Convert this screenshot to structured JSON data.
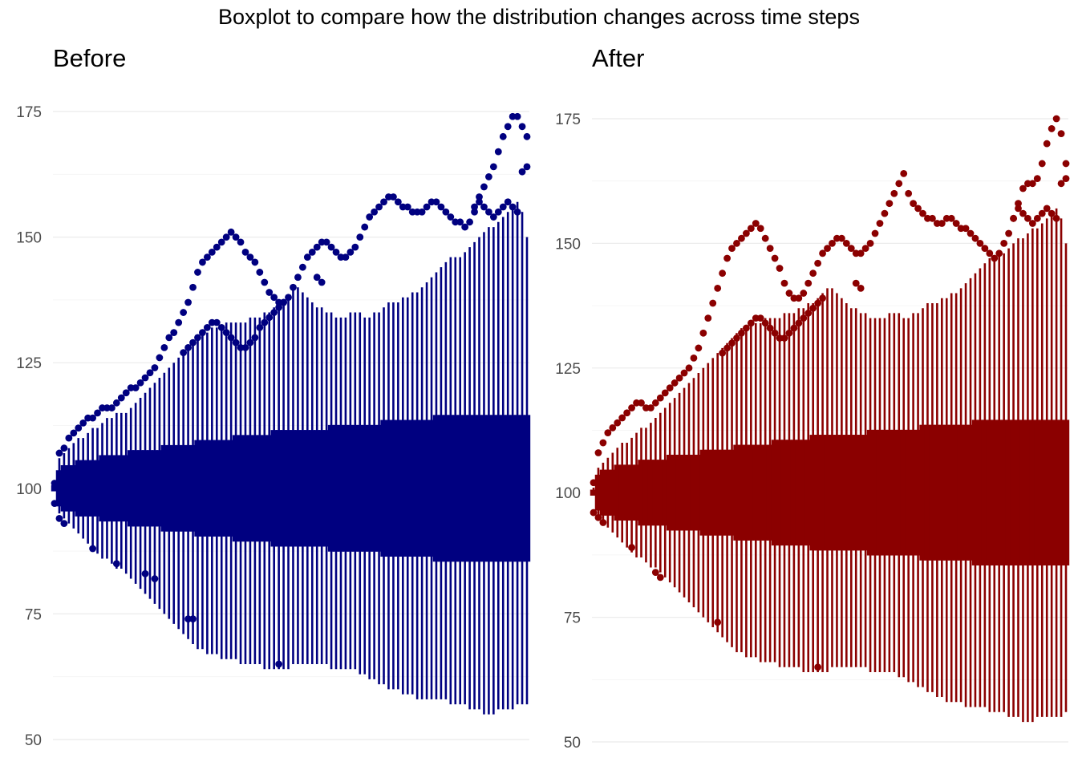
{
  "chart_data": {
    "type": "boxplot",
    "title": "Boxplot to compare how the distribution changes across time steps",
    "n_time_steps": 100,
    "panels": [
      {
        "name": "Before",
        "color": "#000080",
        "ylim": [
          50,
          175
        ],
        "yticks": [
          50,
          75,
          100,
          125,
          150,
          175
        ],
        "grid": true,
        "upper_whisker": [
          100,
          106,
          107,
          108,
          109,
          110,
          110,
          111,
          112,
          112,
          113,
          114,
          114,
          115,
          115,
          115,
          116,
          117,
          118,
          119,
          120,
          121,
          122,
          123,
          124,
          125,
          126,
          127,
          128,
          129,
          130,
          131,
          131,
          132,
          132,
          132,
          133,
          133,
          133,
          133,
          133,
          134,
          134,
          134,
          135,
          135,
          136,
          136,
          137,
          138,
          140,
          140,
          139,
          138,
          137,
          136,
          136,
          135,
          135,
          134,
          134,
          134,
          135,
          135,
          135,
          134,
          134,
          135,
          135,
          136,
          137,
          137,
          137,
          138,
          138,
          139,
          139,
          140,
          141,
          142,
          143,
          144,
          145,
          146,
          146,
          146,
          147,
          148,
          149,
          150,
          151,
          152,
          152,
          153,
          154,
          155,
          156,
          157,
          155,
          150
        ],
        "lower_whisker": [
          100,
          95,
          94,
          93,
          92,
          91,
          90,
          89,
          88,
          87,
          86,
          86,
          85,
          84,
          84,
          83,
          82,
          81,
          80,
          79,
          78,
          77,
          76,
          75,
          74,
          73,
          72,
          71,
          70,
          69,
          68,
          68,
          67,
          67,
          67,
          66,
          66,
          66,
          66,
          65,
          65,
          65,
          65,
          65,
          64,
          64,
          64,
          64,
          64,
          64,
          65,
          65,
          65,
          65,
          65,
          65,
          65,
          65,
          64,
          64,
          64,
          64,
          64,
          64,
          63,
          63,
          62,
          62,
          61,
          61,
          60,
          60,
          60,
          59,
          59,
          59,
          58,
          58,
          58,
          58,
          58,
          58,
          58,
          57,
          57,
          57,
          57,
          56,
          56,
          56,
          55,
          55,
          55,
          56,
          56,
          56,
          56,
          57,
          57,
          57
        ],
        "box_half_width": [
          0,
          3,
          4,
          4,
          4,
          5,
          5,
          5,
          5,
          5,
          6,
          6,
          6,
          6,
          6,
          6,
          7,
          7,
          7,
          7,
          7,
          7,
          7,
          8,
          8,
          8,
          8,
          8,
          8,
          8,
          9,
          9,
          9,
          9,
          9,
          9,
          9,
          9,
          10,
          10,
          10,
          10,
          10,
          10,
          10,
          10,
          11,
          11,
          11,
          11,
          11,
          11,
          11,
          11,
          11,
          11,
          11,
          11,
          12,
          12,
          12,
          12,
          12,
          12,
          12,
          12,
          12,
          12,
          12,
          13,
          13,
          13,
          13,
          13,
          13,
          13,
          13,
          13,
          13,
          13,
          14,
          14,
          14,
          14,
          14,
          14,
          14,
          14,
          14,
          14,
          14,
          14,
          14,
          14,
          14,
          14,
          14,
          14,
          14,
          14
        ],
        "upper_outlier_1": [
          101,
          107,
          108,
          110,
          111,
          112,
          113,
          114,
          114,
          115,
          116,
          116,
          116,
          117,
          118,
          119,
          120,
          120,
          121,
          122,
          123,
          124,
          126,
          128,
          130,
          131,
          133,
          135,
          137,
          140,
          143,
          145,
          146,
          147,
          148,
          149,
          150,
          151,
          150,
          149,
          147,
          146,
          145,
          143,
          141,
          139,
          138,
          137,
          137,
          138,
          140,
          142,
          144,
          146,
          147,
          148,
          149,
          149,
          148,
          147,
          146,
          146,
          147,
          148,
          150,
          152,
          154,
          155,
          156,
          157,
          158,
          158,
          157,
          156,
          156,
          155,
          155,
          155,
          156,
          157,
          157,
          156,
          155,
          154,
          153,
          153,
          152,
          153,
          156,
          158,
          160,
          162,
          164,
          167,
          170,
          172,
          174,
          174,
          172,
          170
        ],
        "upper_outlier_2": [
          null,
          null,
          null,
          null,
          null,
          null,
          null,
          null,
          null,
          null,
          null,
          null,
          null,
          null,
          null,
          null,
          null,
          null,
          null,
          null,
          null,
          null,
          null,
          null,
          null,
          null,
          null,
          127,
          128,
          129,
          130,
          131,
          132,
          133,
          133,
          132,
          131,
          130,
          129,
          128,
          128,
          129,
          130,
          132,
          133,
          134,
          135,
          136,
          137,
          null,
          null,
          null,
          null,
          null,
          null,
          142,
          141,
          null,
          null,
          null,
          null,
          null,
          null,
          null,
          null,
          null,
          null,
          null,
          null,
          null,
          null,
          null,
          null,
          null,
          null,
          null,
          null,
          null,
          null,
          null,
          null,
          null,
          null,
          null,
          null,
          null,
          null,
          null,
          155,
          157,
          156,
          155,
          154,
          155,
          156,
          157,
          156,
          155,
          163,
          164
        ],
        "lower_outlier": [
          97,
          94,
          93,
          null,
          null,
          null,
          null,
          null,
          88,
          null,
          null,
          null,
          null,
          85,
          null,
          null,
          null,
          null,
          null,
          83,
          null,
          82,
          null,
          null,
          null,
          null,
          null,
          null,
          74,
          74,
          null,
          null,
          null,
          null,
          null,
          null,
          null,
          null,
          null,
          null,
          null,
          null,
          null,
          null,
          null,
          null,
          null,
          65,
          null,
          null,
          null,
          null,
          null,
          null,
          null,
          null,
          null,
          null,
          null,
          null,
          null,
          null,
          null,
          null,
          null,
          null,
          null,
          null,
          null,
          null,
          null,
          null,
          null,
          null,
          null,
          null,
          null,
          null,
          null,
          null,
          null,
          null,
          null,
          null,
          null,
          null,
          null,
          null,
          null,
          null,
          null,
          null,
          null,
          null,
          null,
          null,
          null,
          null,
          null,
          null
        ]
      },
      {
        "name": "After",
        "color": "#8b0000",
        "ylim": [
          50,
          175
        ],
        "yticks": [
          50,
          75,
          100,
          125,
          150,
          175
        ],
        "grid": true,
        "upper_whisker": [
          101,
          105,
          106,
          107,
          108,
          109,
          110,
          110,
          111,
          112,
          113,
          113,
          114,
          115,
          116,
          117,
          118,
          119,
          120,
          121,
          122,
          123,
          124,
          125,
          126,
          127,
          128,
          129,
          130,
          131,
          132,
          133,
          133,
          134,
          134,
          134,
          135,
          135,
          135,
          135,
          136,
          136,
          136,
          137,
          137,
          138,
          138,
          139,
          140,
          141,
          141,
          140,
          139,
          138,
          137,
          137,
          136,
          136,
          135,
          135,
          135,
          135,
          136,
          136,
          136,
          135,
          135,
          136,
          136,
          137,
          138,
          138,
          138,
          139,
          139,
          140,
          140,
          141,
          142,
          143,
          144,
          145,
          146,
          147,
          147,
          148,
          148,
          149,
          150,
          151,
          151,
          152,
          153,
          153,
          154,
          155,
          156,
          157,
          155,
          150
        ],
        "lower_whisker": [
          100,
          95,
          94,
          93,
          92,
          91,
          90,
          89,
          88,
          87,
          87,
          86,
          85,
          85,
          84,
          83,
          82,
          81,
          80,
          79,
          78,
          77,
          76,
          75,
          74,
          73,
          72,
          71,
          70,
          69,
          68,
          68,
          67,
          67,
          67,
          66,
          66,
          66,
          66,
          65,
          65,
          65,
          65,
          65,
          64,
          64,
          64,
          64,
          64,
          64,
          65,
          65,
          65,
          65,
          65,
          65,
          65,
          65,
          64,
          64,
          64,
          64,
          64,
          64,
          63,
          63,
          62,
          62,
          61,
          61,
          60,
          60,
          59,
          59,
          58,
          58,
          58,
          58,
          57,
          57,
          57,
          57,
          57,
          56,
          56,
          56,
          56,
          55,
          55,
          55,
          54,
          54,
          54,
          55,
          55,
          55,
          55,
          55,
          55,
          56
        ],
        "box_half_width": [
          0,
          3,
          4,
          4,
          4,
          5,
          5,
          5,
          5,
          5,
          6,
          6,
          6,
          6,
          6,
          6,
          7,
          7,
          7,
          7,
          7,
          7,
          7,
          8,
          8,
          8,
          8,
          8,
          8,
          8,
          9,
          9,
          9,
          9,
          9,
          9,
          9,
          9,
          10,
          10,
          10,
          10,
          10,
          10,
          10,
          10,
          11,
          11,
          11,
          11,
          11,
          11,
          11,
          11,
          11,
          11,
          11,
          11,
          12,
          12,
          12,
          12,
          12,
          12,
          12,
          12,
          12,
          12,
          12,
          13,
          13,
          13,
          13,
          13,
          13,
          13,
          13,
          13,
          13,
          13,
          14,
          14,
          14,
          14,
          14,
          14,
          14,
          14,
          14,
          14,
          14,
          14,
          14,
          14,
          14,
          14,
          14,
          14,
          14,
          14
        ],
        "upper_outlier_1": [
          102,
          108,
          110,
          112,
          113,
          114,
          115,
          116,
          117,
          118,
          118,
          117,
          117,
          118,
          119,
          120,
          121,
          122,
          123,
          124,
          125,
          127,
          129,
          132,
          135,
          138,
          141,
          144,
          147,
          149,
          150,
          151,
          152,
          153,
          154,
          153,
          151,
          149,
          147,
          145,
          142,
          140,
          139,
          139,
          140,
          142,
          144,
          146,
          148,
          149,
          150,
          151,
          151,
          150,
          149,
          148,
          148,
          149,
          150,
          152,
          154,
          156,
          158,
          160,
          162,
          164,
          160,
          158,
          157,
          156,
          155,
          155,
          154,
          154,
          155,
          155,
          154,
          153,
          153,
          152,
          151,
          150,
          149,
          148,
          147,
          148,
          150,
          152,
          155,
          158,
          161,
          162,
          162,
          163,
          166,
          170,
          173,
          175,
          172,
          166
        ],
        "upper_outlier_2": [
          null,
          null,
          null,
          null,
          null,
          null,
          null,
          null,
          null,
          null,
          null,
          null,
          null,
          null,
          null,
          null,
          null,
          null,
          null,
          null,
          null,
          null,
          null,
          null,
          null,
          null,
          null,
          128,
          129,
          130,
          131,
          132,
          133,
          134,
          135,
          135,
          134,
          133,
          132,
          131,
          131,
          132,
          133,
          134,
          135,
          136,
          137,
          138,
          139,
          null,
          null,
          null,
          null,
          null,
          null,
          142,
          141,
          null,
          null,
          null,
          null,
          null,
          null,
          null,
          null,
          null,
          null,
          null,
          null,
          null,
          null,
          null,
          null,
          null,
          null,
          null,
          null,
          null,
          null,
          null,
          null,
          null,
          null,
          null,
          null,
          null,
          null,
          null,
          155,
          157,
          156,
          155,
          154,
          155,
          156,
          157,
          156,
          155,
          162,
          163
        ],
        "lower_outlier": [
          96,
          95,
          94,
          null,
          null,
          null,
          null,
          null,
          89,
          null,
          null,
          null,
          null,
          84,
          83,
          null,
          null,
          null,
          null,
          null,
          null,
          null,
          null,
          null,
          null,
          null,
          74,
          null,
          null,
          null,
          null,
          null,
          null,
          null,
          null,
          null,
          null,
          null,
          null,
          null,
          null,
          null,
          null,
          null,
          null,
          null,
          null,
          65,
          null,
          null,
          null,
          null,
          null,
          null,
          null,
          null,
          null,
          null,
          null,
          null,
          null,
          null,
          null,
          null,
          null,
          null,
          null,
          null,
          null,
          null,
          null,
          null,
          null,
          null,
          null,
          null,
          null,
          null,
          null,
          null,
          null,
          null,
          null,
          null,
          null,
          null,
          null,
          null,
          null,
          null,
          null,
          null,
          null,
          null,
          null,
          null,
          null,
          null,
          null,
          null
        ]
      }
    ]
  }
}
